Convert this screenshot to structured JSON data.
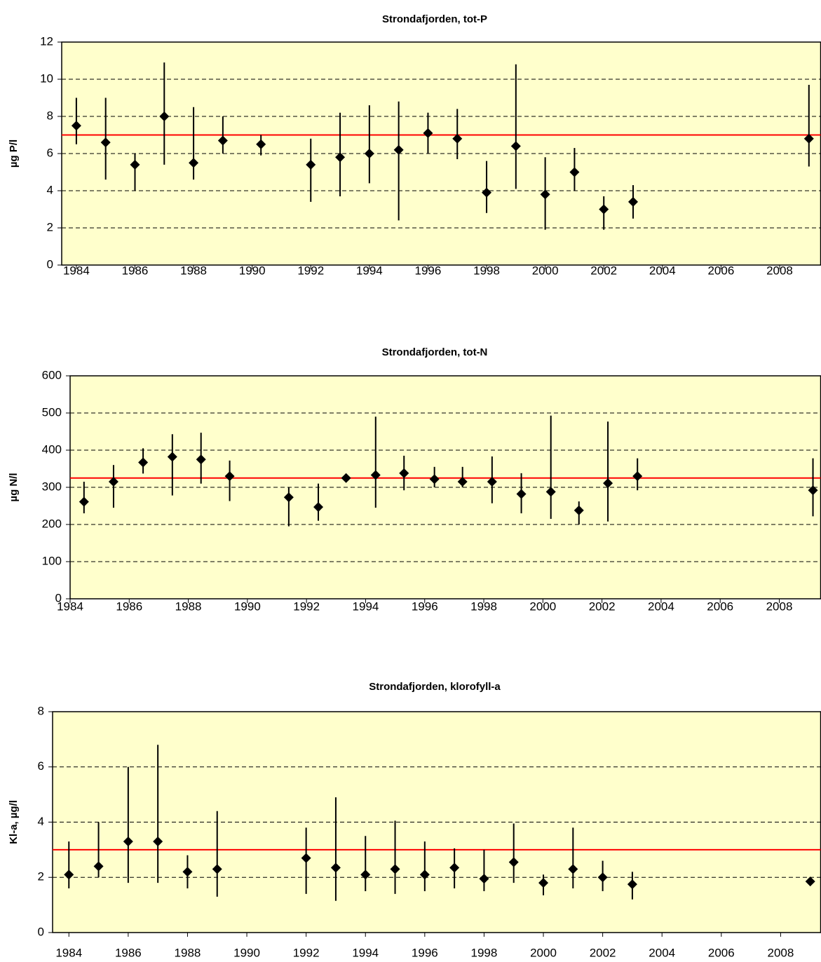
{
  "chart_data": [
    {
      "type": "scatter",
      "title": "Strondafjorden, tot-P",
      "ylabel": "µg P/l",
      "x": [
        1984,
        1985,
        1986,
        1987,
        1988,
        1989,
        1990.3,
        1992,
        1993,
        1994,
        1995,
        1996,
        1997,
        1998,
        1999,
        2000,
        2001,
        2002,
        2003,
        2009
      ],
      "values": [
        7.5,
        6.6,
        5.4,
        8.0,
        5.5,
        6.7,
        6.5,
        5.4,
        5.8,
        6.0,
        6.2,
        7.1,
        6.8,
        3.9,
        6.4,
        3.8,
        5.0,
        3.0,
        3.4,
        6.8
      ],
      "upper": [
        9.0,
        9.0,
        6.0,
        10.9,
        8.5,
        8.0,
        7.0,
        6.8,
        8.2,
        8.6,
        8.8,
        8.2,
        8.4,
        5.6,
        10.8,
        5.8,
        6.3,
        3.7,
        4.3,
        9.7
      ],
      "lower": [
        6.5,
        4.6,
        4.0,
        5.4,
        4.6,
        6.0,
        5.9,
        3.4,
        3.7,
        4.4,
        2.4,
        6.0,
        5.7,
        2.8,
        4.1,
        1.9,
        4.0,
        1.9,
        2.5,
        5.3
      ],
      "color": "#000000",
      "reference_line": 7,
      "reference_color": "#ff0000",
      "background": "#ffffcc",
      "xlim": [
        1983.5,
        2009.4
      ],
      "xticks": [
        1984,
        1986,
        1988,
        1990,
        1992,
        1994,
        1996,
        1998,
        2000,
        2002,
        2004,
        2006,
        2008
      ],
      "ylim": [
        0,
        12
      ],
      "yticks": [
        0,
        2,
        4,
        6,
        8,
        10,
        12
      ],
      "grid": true
    },
    {
      "type": "scatter",
      "title": "Strondafjorden, tot-N",
      "ylabel": "µg N/l",
      "x": [
        1984.47,
        1985.47,
        1986.47,
        1987.46,
        1988.43,
        1989.4,
        1991.4,
        1992.4,
        1993.34,
        1994.34,
        1995.3,
        1996.33,
        1997.28,
        1998.28,
        1999.27,
        2000.27,
        2001.22,
        2002.2,
        2003.2,
        2009.14
      ],
      "values": [
        261,
        315,
        367,
        382,
        375,
        330,
        273,
        247,
        325,
        333,
        338,
        322,
        315,
        315,
        282,
        288,
        238,
        311,
        330,
        292
      ],
      "upper": [
        315,
        360,
        405,
        443,
        447,
        372,
        300,
        310,
        335,
        490,
        385,
        355,
        355,
        383,
        338,
        493,
        262,
        477,
        378,
        378
      ],
      "lower": [
        230,
        245,
        337,
        278,
        310,
        263,
        195,
        210,
        315,
        245,
        292,
        300,
        300,
        257,
        230,
        215,
        200,
        208,
        292,
        222
      ],
      "color": "#000000",
      "reference_line": 325,
      "reference_color": "#ff0000",
      "background": "#ffffcc",
      "xlim": [
        1984,
        2009.4
      ],
      "xticks": [
        1984,
        1986,
        1988,
        1990,
        1992,
        1994,
        1996,
        1998,
        2000,
        2002,
        2004,
        2006,
        2008
      ],
      "ylim": [
        0,
        600
      ],
      "yticks": [
        0,
        100,
        200,
        300,
        400,
        500,
        600
      ],
      "grid": true
    },
    {
      "type": "scatter",
      "title": "Strondafjorden, klorofyll-a",
      "ylabel": "Kl-a, µg/l",
      "x": [
        1984,
        1985,
        1986,
        1987,
        1988,
        1989,
        1992,
        1993,
        1994,
        1995,
        1996,
        1997,
        1998,
        1999,
        2000,
        2001,
        2002,
        2003,
        2009
      ],
      "values": [
        2.1,
        2.4,
        3.3,
        3.3,
        2.2,
        2.3,
        2.7,
        2.35,
        2.1,
        2.3,
        2.1,
        2.35,
        1.95,
        2.55,
        1.8,
        2.3,
        2.0,
        1.75,
        1.85
      ],
      "upper": [
        3.3,
        4.0,
        6.0,
        6.8,
        2.8,
        4.4,
        3.8,
        4.9,
        3.5,
        4.05,
        3.3,
        3.05,
        3.0,
        3.95,
        2.1,
        3.8,
        2.6,
        2.2,
        1.95
      ],
      "lower": [
        1.6,
        2.0,
        1.8,
        1.8,
        1.6,
        1.3,
        1.4,
        1.15,
        1.5,
        1.4,
        1.5,
        1.6,
        1.5,
        1.8,
        1.35,
        1.6,
        1.5,
        1.2,
        1.7
      ],
      "color": "#000000",
      "reference_line": 3,
      "reference_color": "#ff0000",
      "background": "#ffffcc",
      "xlim": [
        1983.45,
        2009.35
      ],
      "xticks": [
        1984,
        1986,
        1988,
        1990,
        1992,
        1994,
        1996,
        1998,
        2000,
        2002,
        2004,
        2006,
        2008
      ],
      "ylim": [
        0,
        8
      ],
      "yticks": [
        0,
        2,
        4,
        6,
        8
      ],
      "grid": true
    }
  ]
}
